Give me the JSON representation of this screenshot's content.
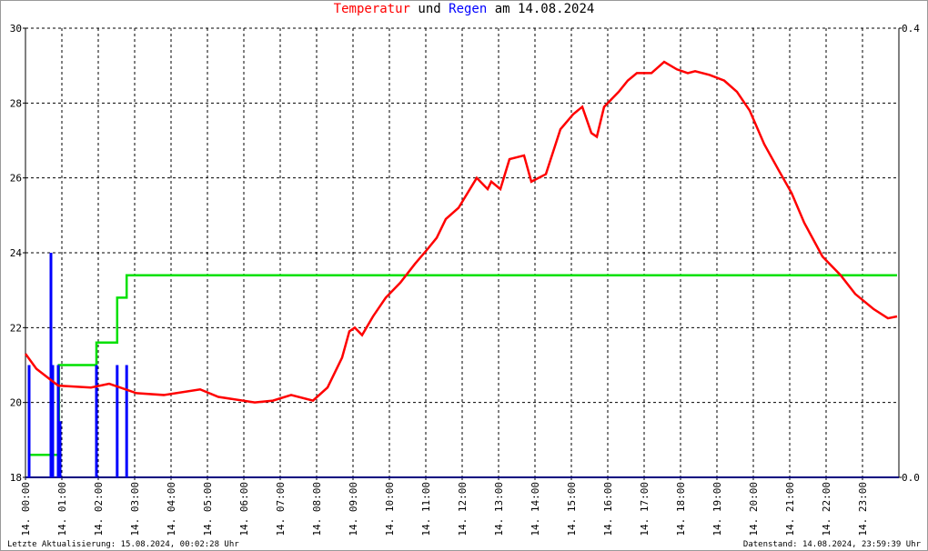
{
  "chart_data": {
    "type": "line",
    "title_joiner": "und",
    "title_suffix": "am 14.08.2024",
    "footer_left": "Letzte Aktualisierung: 15.08.2024, 00:02:28 Uhr",
    "footer_right": "Datenstand: 14.08.2024, 23:59:39 Uhr",
    "xlim": [
      0,
      24
    ],
    "xticks": [
      {
        "value": 0,
        "label": "14. 00:00"
      },
      {
        "value": 1,
        "label": "14. 01:00"
      },
      {
        "value": 2,
        "label": "14. 02:00"
      },
      {
        "value": 3,
        "label": "14. 03:00"
      },
      {
        "value": 4,
        "label": "14. 04:00"
      },
      {
        "value": 5,
        "label": "14. 05:00"
      },
      {
        "value": 6,
        "label": "14. 06:00"
      },
      {
        "value": 7,
        "label": "14. 07:00"
      },
      {
        "value": 8,
        "label": "14. 08:00"
      },
      {
        "value": 9,
        "label": "14. 09:00"
      },
      {
        "value": 10,
        "label": "14. 10:00"
      },
      {
        "value": 11,
        "label": "14. 11:00"
      },
      {
        "value": 12,
        "label": "14. 12:00"
      },
      {
        "value": 13,
        "label": "14. 13:00"
      },
      {
        "value": 14,
        "label": "14. 14:00"
      },
      {
        "value": 15,
        "label": "14. 15:00"
      },
      {
        "value": 16,
        "label": "14. 16:00"
      },
      {
        "value": 17,
        "label": "14. 17:00"
      },
      {
        "value": 18,
        "label": "14. 18:00"
      },
      {
        "value": 19,
        "label": "14. 19:00"
      },
      {
        "value": 20,
        "label": "14. 20:00"
      },
      {
        "value": 21,
        "label": "14. 21:00"
      },
      {
        "value": 22,
        "label": "14. 22:00"
      },
      {
        "value": 23,
        "label": "14. 23:00"
      }
    ],
    "ylim": [
      18,
      30
    ],
    "yticks": [
      18,
      20,
      22,
      24,
      26,
      28,
      30
    ],
    "y2lim": [
      0,
      0.4
    ],
    "y2ticks": [
      {
        "value": 0,
        "label": "0.0"
      },
      {
        "value": 0.4,
        "label": "0.4"
      }
    ],
    "grid": true,
    "series": [
      {
        "name": "Temperatur",
        "color": "#ff0000",
        "type": "line",
        "x": [
          0,
          0.3,
          0.7,
          0.9,
          1.8,
          2.3,
          3.05,
          3.8,
          4.8,
          5.3,
          6.3,
          6.8,
          7.3,
          7.9,
          8.3,
          8.7,
          8.9,
          9.05,
          9.25,
          9.55,
          9.9,
          10.3,
          10.7,
          11.05,
          11.3,
          11.55,
          11.9,
          12.4,
          12.7,
          12.8,
          13.05,
          13.3,
          13.7,
          13.9,
          14.3,
          14.7,
          15.05,
          15.3,
          15.55,
          15.7,
          15.9,
          16.3,
          16.55,
          16.8,
          17.2,
          17.55,
          17.9,
          18.2,
          18.4,
          18.8,
          19.2,
          19.55,
          19.9,
          20.3,
          20.7,
          21.05,
          21.4,
          21.9,
          22.4,
          22.8,
          23.3,
          23.7,
          23.95
        ],
        "values": [
          21.3,
          20.9,
          20.6,
          20.45,
          20.4,
          20.5,
          20.25,
          20.2,
          20.35,
          20.15,
          20.0,
          20.05,
          20.2,
          20.05,
          20.4,
          21.2,
          21.9,
          22.0,
          21.8,
          22.3,
          22.8,
          23.2,
          23.7,
          24.1,
          24.4,
          24.9,
          25.2,
          26.0,
          25.7,
          25.9,
          25.7,
          26.5,
          26.6,
          25.9,
          26.1,
          27.3,
          27.7,
          27.9,
          27.2,
          27.1,
          27.9,
          28.3,
          28.6,
          28.8,
          28.8,
          29.1,
          28.9,
          28.8,
          28.85,
          28.75,
          28.6,
          28.3,
          27.8,
          26.9,
          26.2,
          25.6,
          24.8,
          23.9,
          23.4,
          22.9,
          22.5,
          22.25,
          22.3
        ]
      },
      {
        "name": "Regen",
        "color": "#0000ff",
        "type": "bar",
        "axis": "y2",
        "x": [
          0.1,
          0.7,
          0.75,
          0.9,
          0.95,
          1.95,
          2.52,
          2.78
        ],
        "values": [
          0.1,
          0.2,
          0.1,
          0.1,
          0.05,
          0.1,
          0.1,
          0.1
        ]
      },
      {
        "color": "#00e000",
        "type": "step",
        "axis": "y2",
        "x": [
          0.12,
          0.92,
          1.95,
          2.52,
          2.78,
          23.95
        ],
        "values": [
          0.02,
          0.1,
          0.12,
          0.16,
          0.18,
          0.18
        ]
      }
    ]
  }
}
